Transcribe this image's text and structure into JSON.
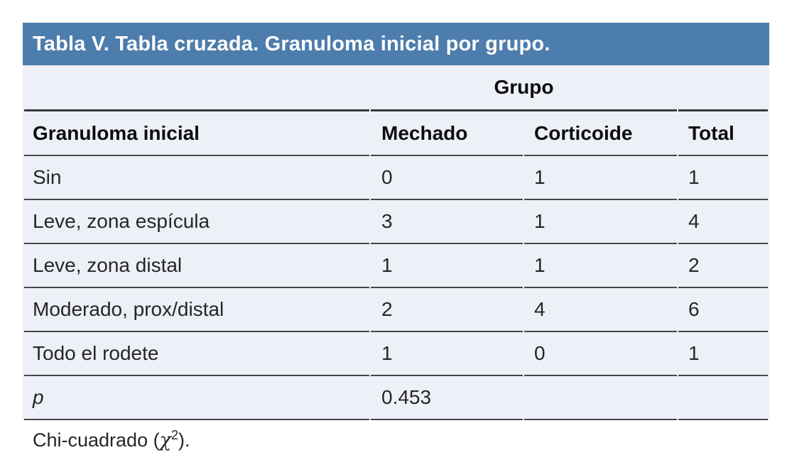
{
  "theme": {
    "page_bg_color": "#ffffff",
    "title_bar_color": "#4d7dac",
    "title_text_color": "#ffffff",
    "body_bg_color": "#edf0f6",
    "rule_color": "#46464a",
    "rule_heavy_color": "#38383c",
    "header_text_color": "#0d0d0f",
    "text_color": "#26262a"
  },
  "table": {
    "title": "Tabla V. Tabla cruzada. Granuloma inicial por grupo.",
    "group_header": "Grupo",
    "columns": [
      "Granuloma inicial",
      "Mechado",
      "Corticoide",
      "Total"
    ],
    "rows": [
      [
        "Sin",
        "0",
        "1",
        "1"
      ],
      [
        "Leve, zona espícula",
        "3",
        "1",
        "4"
      ],
      [
        "Leve, zona distal",
        "1",
        "1",
        "2"
      ],
      [
        "Moderado, prox/distal",
        "2",
        "4",
        "6"
      ],
      [
        "Todo el rodete",
        "1",
        "0",
        "1"
      ]
    ],
    "p_row": {
      "label": "p",
      "value": "0.453"
    },
    "footnote": {
      "prefix": "Chi-cuadrado (",
      "chi": "χ",
      "sup": "2",
      "suffix": ")."
    }
  }
}
